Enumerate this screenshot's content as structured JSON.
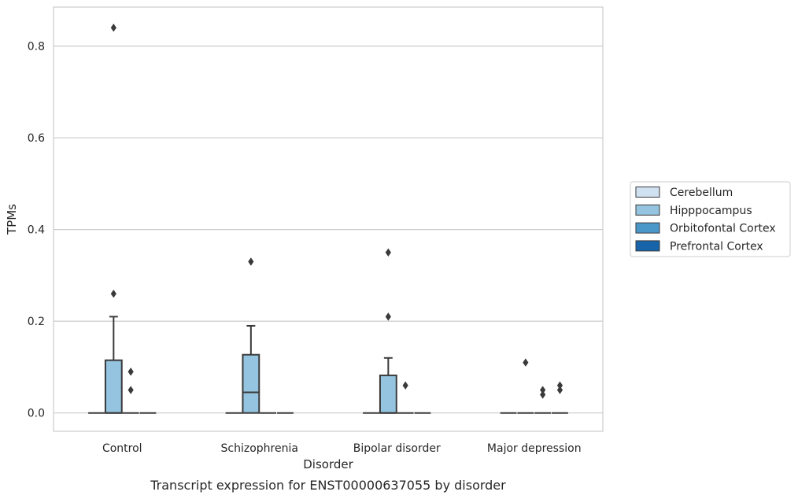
{
  "chart_data": {
    "type": "box",
    "caption": "Transcript expression for ENST00000637055 by disorder",
    "xlabel": "Disorder",
    "ylabel": "TPMs",
    "ylim": [
      -0.04,
      0.885
    ],
    "yticks": [
      0.0,
      0.2,
      0.4,
      0.6,
      0.8
    ],
    "ytick_labels": [
      "0.0",
      "0.2",
      "0.4",
      "0.6",
      "0.8"
    ],
    "grid": "horizontal",
    "legend_position": "right",
    "categories": [
      "Control",
      "Schizophrenia",
      "Bipolar disorder",
      "Major depression"
    ],
    "series": [
      {
        "name": "Cerebellum",
        "color": "#d0e1f2",
        "boxes": [
          {
            "q1": 0,
            "median": 0,
            "q3": 0,
            "whisker_low": 0,
            "whisker_high": 0,
            "outliers": []
          },
          {
            "q1": 0,
            "median": 0,
            "q3": 0,
            "whisker_low": 0,
            "whisker_high": 0,
            "outliers": []
          },
          {
            "q1": 0,
            "median": 0,
            "q3": 0,
            "whisker_low": 0,
            "whisker_high": 0,
            "outliers": []
          },
          {
            "q1": 0,
            "median": 0,
            "q3": 0,
            "whisker_low": 0,
            "whisker_high": 0,
            "outliers": []
          }
        ]
      },
      {
        "name": "Hipppocampus",
        "color": "#94c4df",
        "boxes": [
          {
            "q1": 0,
            "median": 0,
            "q3": 0.115,
            "whisker_low": 0,
            "whisker_high": 0.21,
            "outliers": [
              0.84,
              0.26
            ]
          },
          {
            "q1": 0,
            "median": 0.045,
            "q3": 0.127,
            "whisker_low": 0,
            "whisker_high": 0.19,
            "outliers": [
              0.33
            ]
          },
          {
            "q1": 0,
            "median": 0,
            "q3": 0.082,
            "whisker_low": 0,
            "whisker_high": 0.12,
            "outliers": [
              0.35,
              0.21
            ]
          },
          {
            "q1": 0,
            "median": 0,
            "q3": 0,
            "whisker_low": 0,
            "whisker_high": 0,
            "outliers": [
              0.11
            ]
          }
        ]
      },
      {
        "name": "Orbitofontal Cortex",
        "color": "#4a98c9",
        "boxes": [
          {
            "q1": 0,
            "median": 0,
            "q3": 0,
            "whisker_low": 0,
            "whisker_high": 0,
            "outliers": [
              0.09,
              0.05
            ]
          },
          {
            "q1": 0,
            "median": 0,
            "q3": 0,
            "whisker_low": 0,
            "whisker_high": 0,
            "outliers": []
          },
          {
            "q1": 0,
            "median": 0,
            "q3": 0,
            "whisker_low": 0,
            "whisker_high": 0,
            "outliers": [
              0.06
            ]
          },
          {
            "q1": 0,
            "median": 0,
            "q3": 0,
            "whisker_low": 0,
            "whisker_high": 0,
            "outliers": [
              0.05,
              0.04
            ]
          }
        ]
      },
      {
        "name": "Prefrontal Cortex",
        "color": "#1764ab",
        "boxes": [
          {
            "q1": 0,
            "median": 0,
            "q3": 0,
            "whisker_low": 0,
            "whisker_high": 0,
            "outliers": []
          },
          {
            "q1": 0,
            "median": 0,
            "q3": 0,
            "whisker_low": 0,
            "whisker_high": 0,
            "outliers": []
          },
          {
            "q1": 0,
            "median": 0,
            "q3": 0,
            "whisker_low": 0,
            "whisker_high": 0,
            "outliers": []
          },
          {
            "q1": 0,
            "median": 0,
            "q3": 0,
            "whisker_low": 0,
            "whisker_high": 0,
            "outliers": [
              0.06,
              0.05
            ]
          }
        ]
      }
    ]
  },
  "colors": {
    "grid": "#cccccc",
    "frame": "#cccccc",
    "box_edge": "#3a3a3a",
    "text": "#262626"
  }
}
